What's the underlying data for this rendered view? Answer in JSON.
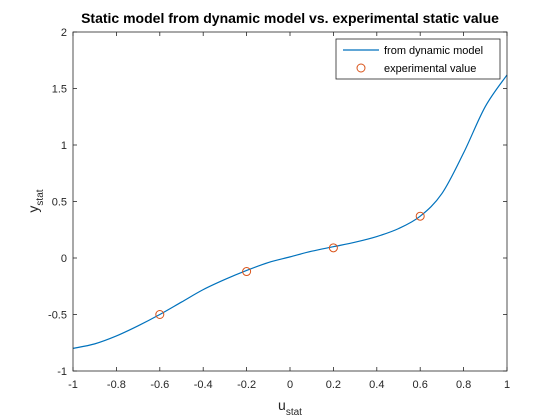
{
  "chart_data": {
    "type": "line",
    "title": "Static model from dynamic model vs. experimental static value",
    "xlabel": {
      "main": "u",
      "sub": "stat"
    },
    "ylabel": {
      "main": "y",
      "sub": "stat"
    },
    "xlim": [
      -1,
      1
    ],
    "ylim": [
      -1,
      2
    ],
    "xticks": [
      -1,
      -0.8,
      -0.6,
      -0.4,
      -0.2,
      0,
      0.2,
      0.4,
      0.6,
      0.8,
      1
    ],
    "xtick_labels": [
      "-1",
      "-0.8",
      "-0.6",
      "-0.4",
      "-0.2",
      "0",
      "0.2",
      "0.4",
      "0.6",
      "0.8",
      "1"
    ],
    "yticks": [
      -1,
      -0.5,
      0,
      0.5,
      1,
      1.5,
      2
    ],
    "ytick_labels": [
      "-1",
      "-0.5",
      "0",
      "0.5",
      "1",
      "1.5",
      "2"
    ],
    "grid": false,
    "legend_position": "top-right",
    "series": [
      {
        "name": "from dynamic model",
        "kind": "line",
        "color": "#0072BD",
        "x": [
          -1.0,
          -0.9,
          -0.8,
          -0.7,
          -0.6,
          -0.5,
          -0.4,
          -0.3,
          -0.2,
          -0.1,
          0.0,
          0.1,
          0.2,
          0.3,
          0.4,
          0.5,
          0.6,
          0.7,
          0.8,
          0.9,
          1.0
        ],
        "y": [
          -0.8,
          -0.76,
          -0.69,
          -0.6,
          -0.5,
          -0.39,
          -0.28,
          -0.19,
          -0.11,
          -0.04,
          0.01,
          0.06,
          0.1,
          0.14,
          0.19,
          0.26,
          0.37,
          0.57,
          0.93,
          1.34,
          1.62
        ]
      },
      {
        "name": "experimental value",
        "kind": "marker",
        "marker": "circle",
        "color": "#D95319",
        "x": [
          -0.6,
          -0.2,
          0.2,
          0.6
        ],
        "y": [
          -0.5,
          -0.12,
          0.09,
          0.37
        ]
      }
    ]
  }
}
